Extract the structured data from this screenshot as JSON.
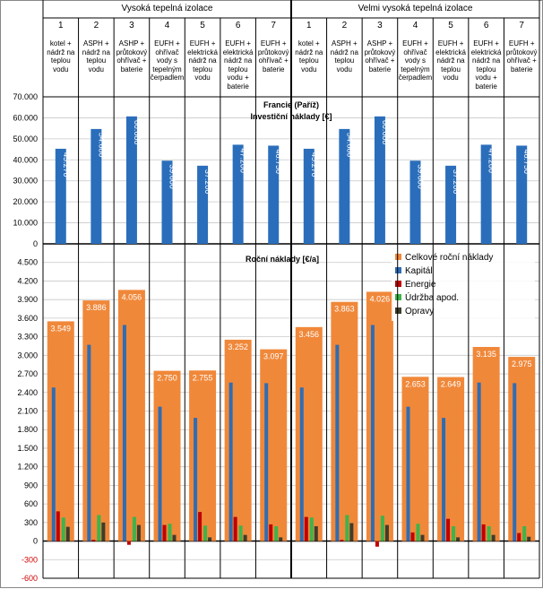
{
  "header": {
    "groups": [
      {
        "title": "Vysoká tepelná izolace",
        "columns": [
          {
            "number": "1",
            "label": "kotel + nádrž na teplou vodu"
          },
          {
            "number": "2",
            "label": "ASPH + nádrž na teplou vodu"
          },
          {
            "number": "3",
            "label": "ASHP + průtokový ohřívač + baterie"
          },
          {
            "number": "4",
            "label": "EUFH + ohřívač vody s tepelným čerpadlem"
          },
          {
            "number": "5",
            "label": "EUFH + elektrická nádrž na teplou vodu"
          },
          {
            "number": "6",
            "label": "EUFH + elektrická nádrž na teplou vodu + baterie"
          },
          {
            "number": "7",
            "label": "EUFH + průtokový ohřívač + baterie"
          }
        ]
      },
      {
        "title": "Velmi vysoká tepelná izolace",
        "columns": [
          {
            "number": "1",
            "label": "kotel + nádrž na teplou vodu"
          },
          {
            "number": "2",
            "label": "ASPH + nádrž na teplou vodu"
          },
          {
            "number": "3",
            "label": "ASHP + průtokový ohřívač + baterie"
          },
          {
            "number": "4",
            "label": "EUFH + ohřívač vody s tepelným čerpadlem"
          },
          {
            "number": "5",
            "label": "EUFH + elektrická nádrž na teplou vodu"
          },
          {
            "number": "6",
            "label": "EUFH + elektrická nádrž na teplou vodu + baterie"
          },
          {
            "number": "7",
            "label": "EUFH + průtokový ohřívač + baterie"
          }
        ]
      }
    ]
  },
  "chart_data": [
    {
      "type": "bar",
      "title": "Francie (Paříž)",
      "subtitle": "Investiční náklady [€]",
      "color": "#2a6ebb",
      "grid": true,
      "values": [
        45270,
        54680,
        60680,
        39600,
        37200,
        47200,
        46750,
        45270,
        54680,
        60680,
        39600,
        37200,
        47200,
        46750
      ],
      "value_labels": [
        "45.270",
        "54.680",
        "60.680",
        "39.600",
        "37.200",
        "47.200",
        "46.750",
        "45.270",
        "54.680",
        "60.680",
        "39.600",
        "37.200",
        "47.200",
        "46.750"
      ],
      "ylim": [
        0,
        70000
      ],
      "yticks": [
        0,
        {
          "value": 10000,
          "label": "10.000"
        },
        {
          "value": 20000,
          "label": "20.000"
        },
        {
          "value": 30000,
          "label": "30.000"
        },
        {
          "value": 40000,
          "label": "40.000"
        },
        {
          "value": 50000,
          "label": "50.000"
        },
        {
          "value": 60000,
          "label": "60.000"
        },
        {
          "value": 70000,
          "label": "70.000"
        }
      ]
    },
    {
      "type": "grouped_bar",
      "title": "Roční náklady [€/a]",
      "grid": true,
      "legend": "upper right",
      "ylim": [
        -600,
        4800
      ],
      "yticks": [
        -600,
        -300,
        0,
        300,
        600,
        900,
        {
          "value": 1200,
          "label": "1.200"
        },
        {
          "value": 1500,
          "label": "1.500"
        },
        {
          "value": 1800,
          "label": "1.800"
        },
        {
          "value": 2100,
          "label": "2.100"
        },
        {
          "value": 2400,
          "label": "2.400"
        },
        {
          "value": 2700,
          "label": "2.700"
        },
        {
          "value": 3000,
          "label": "3.000"
        },
        {
          "value": 3300,
          "label": "3.300"
        },
        {
          "value": 3600,
          "label": "3.600"
        },
        {
          "value": 3900,
          "label": "3.900"
        },
        {
          "value": 4200,
          "label": "4.200"
        },
        {
          "value": 4500,
          "label": "4.500"
        }
      ],
      "series": [
        {
          "name": "Celkové roční náklady",
          "color": "#f0883a",
          "values": [
            3549,
            3886,
            4056,
            2750,
            2755,
            3252,
            3097,
            3456,
            3863,
            4026,
            2653,
            2649,
            3135,
            2975
          ],
          "value_labels": [
            "3.549",
            "3.886",
            "4.056",
            "2.750",
            "2.755",
            "3.252",
            "3.097",
            "3.456",
            "3.863",
            "4.026",
            "2.653",
            "2.649",
            "3.135",
            "2.975"
          ]
        },
        {
          "name": "Kapitál",
          "color": "#2e6db4",
          "values": [
            2480,
            3170,
            3490,
            2170,
            1990,
            2560,
            2550,
            2480,
            3170,
            3490,
            2170,
            1990,
            2560,
            2550
          ]
        },
        {
          "name": "Energie",
          "color": "#c00000",
          "values": [
            480,
            20,
            -60,
            260,
            470,
            390,
            270,
            390,
            20,
            -90,
            140,
            360,
            270,
            130
          ]
        },
        {
          "name": "Údržba apod.",
          "color": "#3cb44b",
          "values": [
            380,
            420,
            390,
            280,
            250,
            250,
            240,
            380,
            420,
            410,
            280,
            240,
            240,
            240
          ]
        },
        {
          "name": "Opravy",
          "color": "#3d3d2c",
          "values": [
            230,
            300,
            260,
            100,
            60,
            100,
            60,
            240,
            290,
            260,
            100,
            60,
            100,
            70
          ]
        }
      ]
    }
  ]
}
